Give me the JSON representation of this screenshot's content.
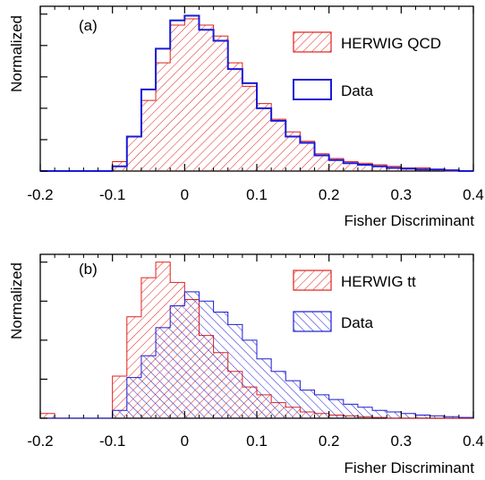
{
  "chart_data": [
    {
      "type": "histogram",
      "panel_label": "(a)",
      "xlabel": "Fisher Discriminant",
      "ylabel": "Normalized",
      "xlim": [
        -0.2,
        0.4
      ],
      "ylim": [
        0,
        1.05
      ],
      "x_ticks": [
        "-0.2",
        "-0.1",
        "0",
        "0.1",
        "0.2",
        "0.3",
        "0.4"
      ],
      "y_ticks_labeled": false,
      "bin_edges": [
        -0.2,
        -0.18,
        -0.16,
        -0.14,
        -0.12,
        -0.1,
        -0.08,
        -0.06,
        -0.04,
        -0.02,
        0.0,
        0.02,
        0.04,
        0.06,
        0.08,
        0.1,
        0.12,
        0.14,
        0.16,
        0.18,
        0.2,
        0.22,
        0.24,
        0.26,
        0.28,
        0.3,
        0.32,
        0.34,
        0.36,
        0.38,
        0.4
      ],
      "series": [
        {
          "name": "HERWIG QCD",
          "style": "hatched",
          "color": "#e0201a",
          "values": [
            0.0,
            0.0,
            0.0,
            0.0,
            0.0,
            0.06,
            0.22,
            0.45,
            0.69,
            0.93,
            0.97,
            0.93,
            0.86,
            0.69,
            0.54,
            0.43,
            0.33,
            0.25,
            0.19,
            0.11,
            0.08,
            0.06,
            0.05,
            0.04,
            0.03,
            0.02,
            0.02,
            0.01,
            0.0,
            0.0
          ]
        },
        {
          "name": "Data",
          "style": "outline",
          "color": "#1b1bd6",
          "values": [
            0.0,
            0.0,
            0.0,
            0.0,
            0.0,
            0.03,
            0.22,
            0.52,
            0.78,
            0.96,
            0.99,
            0.9,
            0.83,
            0.65,
            0.56,
            0.4,
            0.32,
            0.22,
            0.18,
            0.1,
            0.07,
            0.05,
            0.04,
            0.03,
            0.02,
            0.015,
            0.01,
            0.01,
            0.005,
            0.0
          ]
        }
      ],
      "legend_position": "top-right"
    },
    {
      "type": "histogram",
      "panel_label": "(b)",
      "xlabel": "Fisher Discriminant",
      "ylabel": "Normalized",
      "xlim": [
        -0.2,
        0.4
      ],
      "ylim": [
        0,
        1.05
      ],
      "x_ticks": [
        "-0.2",
        "-0.1",
        "0",
        "0.1",
        "0.2",
        "0.3",
        "0.4"
      ],
      "y_ticks_labeled": false,
      "bin_edges": [
        -0.2,
        -0.18,
        -0.16,
        -0.14,
        -0.12,
        -0.1,
        -0.08,
        -0.06,
        -0.04,
        -0.02,
        0.0,
        0.02,
        0.04,
        0.06,
        0.08,
        0.1,
        0.12,
        0.14,
        0.16,
        0.18,
        0.2,
        0.22,
        0.24,
        0.26,
        0.28,
        0.3,
        0.32,
        0.34,
        0.36,
        0.38,
        0.4
      ],
      "series": [
        {
          "name": "HERWIG tt",
          "style": "hatched",
          "color": "#e0201a",
          "values": [
            0.03,
            0.0,
            0.0,
            0.0,
            0.0,
            0.27,
            0.65,
            0.9,
            1.0,
            0.87,
            0.76,
            0.53,
            0.42,
            0.3,
            0.2,
            0.15,
            0.1,
            0.07,
            0.04,
            0.03,
            0.02,
            0.015,
            0.01,
            0.005,
            0.0,
            0.0,
            0.0,
            0.0,
            0.0,
            0.0
          ]
        },
        {
          "name": "Data",
          "style": "hatched",
          "color": "#1b1bd6",
          "values": [
            0.0,
            0.0,
            0.0,
            0.0,
            0.0,
            0.05,
            0.26,
            0.4,
            0.58,
            0.72,
            0.81,
            0.75,
            0.68,
            0.6,
            0.5,
            0.38,
            0.3,
            0.24,
            0.18,
            0.15,
            0.12,
            0.09,
            0.07,
            0.05,
            0.04,
            0.03,
            0.02,
            0.015,
            0.01,
            0.005
          ]
        }
      ],
      "legend_position": "top-right"
    }
  ]
}
